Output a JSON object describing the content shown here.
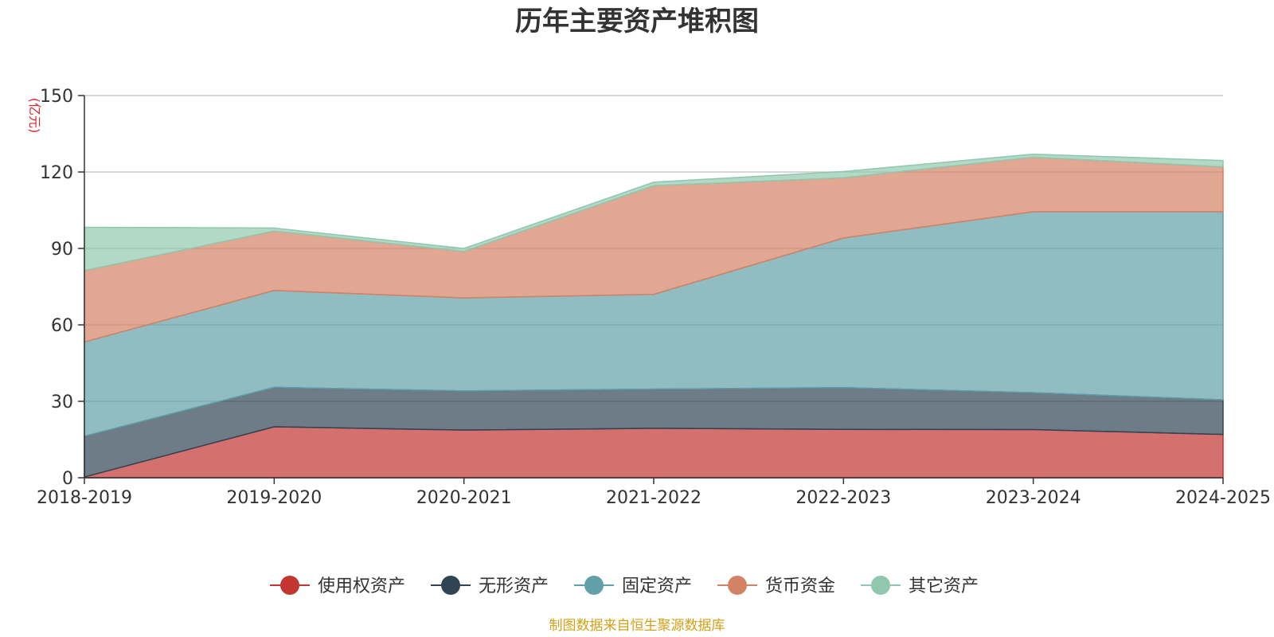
{
  "chart_data": {
    "type": "area",
    "stacked": true,
    "title": "历年主要资产堆积图",
    "unit": "(亿元)",
    "source": "制图数据来自恒生聚源数据库",
    "categories": [
      "2018-2019",
      "2019-2020",
      "2020-2021",
      "2021-2022",
      "2022-2023",
      "2023-2024",
      "2024-2025"
    ],
    "ylim": [
      0,
      150
    ],
    "yticks": [
      0,
      30,
      60,
      90,
      120,
      150
    ],
    "grid": true,
    "legend_position": "bottom",
    "series": [
      {
        "name": "使用权资产",
        "color": "#c23531",
        "values": [
          0.3,
          20.0,
          18.7,
          19.4,
          19.0,
          18.9,
          17.0
        ]
      },
      {
        "name": "无形资产",
        "color": "#2f4554",
        "values": [
          16.0,
          15.5,
          15.4,
          15.4,
          16.4,
          14.5,
          13.6
        ]
      },
      {
        "name": "固定资产",
        "color": "#61a0a8",
        "values": [
          37.0,
          38.0,
          36.5,
          37.2,
          58.7,
          71.0,
          73.8
        ]
      },
      {
        "name": "货币资金",
        "color": "#d48265",
        "values": [
          28.0,
          23.3,
          18.2,
          42.6,
          23.6,
          21.4,
          17.6
        ]
      },
      {
        "name": "其它资产",
        "color": "#91c7ae",
        "values": [
          17.0,
          1.2,
          1.2,
          1.4,
          2.5,
          1.2,
          2.5
        ]
      }
    ]
  }
}
